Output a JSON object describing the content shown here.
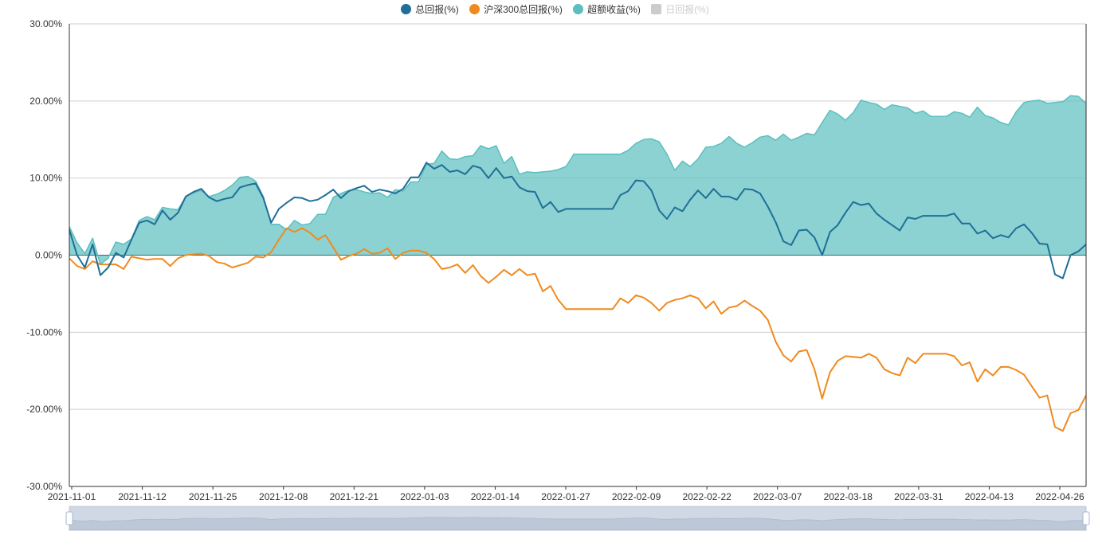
{
  "chart_data": {
    "type": "line",
    "ylim": [
      -30,
      30
    ],
    "y_ticks": [
      "30.00%",
      "20.00%",
      "10.00%",
      "0.00%",
      "-10.00%",
      "-20.00%",
      "-30.00%"
    ],
    "x_ticks": [
      "2021-11-01",
      "2021-11-12",
      "2021-11-25",
      "2021-12-08",
      "2021-12-21",
      "2022-01-03",
      "2022-01-14",
      "2022-01-27",
      "2022-02-09",
      "2022-02-22",
      "2022-03-07",
      "2022-03-18",
      "2022-03-31",
      "2022-04-13",
      "2022-04-26"
    ],
    "grid": true,
    "legend_position": "top-center",
    "series": [
      {
        "name": "总回报(%)",
        "color": "#1f6f98",
        "values": [
          3.3,
          0.0,
          -1.6,
          1.4,
          -2.6,
          -1.6,
          0.3,
          -0.3,
          2.0,
          4.2,
          4.5,
          4.0,
          5.8,
          4.6,
          5.5,
          7.6,
          8.2,
          8.6,
          7.5,
          7.0,
          7.3,
          7.5,
          8.8,
          9.1,
          9.3,
          7.4,
          4.2,
          6.0,
          6.8,
          7.5,
          7.4,
          7.0,
          7.2,
          7.8,
          8.5,
          7.4,
          8.3,
          8.7,
          9.0,
          8.2,
          8.5,
          8.3,
          8.0,
          8.6,
          10.1,
          10.1,
          12.0,
          11.2,
          11.7,
          10.8,
          11.0,
          10.5,
          11.6,
          11.3,
          10.0,
          11.3,
          10.0,
          10.2,
          8.8,
          8.3,
          8.2,
          6.1,
          6.9,
          5.6,
          6.0,
          6.0,
          6.0,
          6.0,
          6.0,
          6.0,
          6.0,
          7.8,
          8.3,
          9.7,
          9.6,
          8.4,
          5.8,
          4.7,
          6.2,
          5.7,
          7.2,
          8.4,
          7.4,
          8.6,
          7.6,
          7.6,
          7.2,
          8.6,
          8.5,
          8.0,
          6.3,
          4.3,
          1.8,
          1.3,
          3.2,
          3.3,
          2.3,
          0.0,
          3.0,
          3.9,
          5.5,
          6.9,
          6.5,
          6.7,
          5.4,
          4.6,
          3.9,
          3.2,
          4.9,
          4.7,
          5.1,
          5.1,
          5.1,
          5.1,
          5.4,
          4.1,
          4.1,
          2.8,
          3.2,
          2.2,
          2.6,
          2.3,
          3.5,
          4.0,
          2.9,
          1.5,
          1.4,
          -2.5,
          -3.0,
          0.0,
          0.5,
          1.4
        ]
      },
      {
        "name": "沪深300总回报(%)",
        "color": "#f08a1e",
        "values": [
          -0.4,
          -1.4,
          -1.8,
          -0.8,
          -1.2,
          -1.2,
          -1.2,
          -1.8,
          -0.2,
          -0.4,
          -0.6,
          -0.5,
          -0.5,
          -1.4,
          -0.4,
          0.0,
          0.1,
          0.2,
          -0.1,
          -0.9,
          -1.1,
          -1.6,
          -1.3,
          -1.0,
          -0.2,
          -0.3,
          0.4,
          2.0,
          3.5,
          3.0,
          3.5,
          2.9,
          2.0,
          2.6,
          1.0,
          -0.6,
          -0.1,
          0.2,
          0.8,
          0.2,
          0.3,
          0.9,
          -0.5,
          0.3,
          0.6,
          0.6,
          0.3,
          -0.5,
          -1.8,
          -1.6,
          -1.2,
          -2.3,
          -1.3,
          -2.7,
          -3.6,
          -2.8,
          -1.9,
          -2.6,
          -1.8,
          -2.6,
          -2.4,
          -4.7,
          -4.0,
          -5.8,
          -7.0,
          -7.0,
          -7.0,
          -7.0,
          -7.0,
          -7.0,
          -7.0,
          -5.6,
          -6.2,
          -5.2,
          -5.5,
          -6.2,
          -7.2,
          -6.2,
          -5.8,
          -5.6,
          -5.2,
          -5.6,
          -6.9,
          -6.0,
          -7.6,
          -6.8,
          -6.6,
          -5.9,
          -6.6,
          -7.2,
          -8.4,
          -11.2,
          -13.0,
          -13.8,
          -12.5,
          -12.3,
          -14.8,
          -18.6,
          -15.2,
          -13.7,
          -13.1,
          -13.2,
          -13.3,
          -12.8,
          -13.3,
          -14.8,
          -15.3,
          -15.6,
          -13.3,
          -14.0,
          -12.8,
          -12.8,
          -12.8,
          -12.8,
          -13.1,
          -14.3,
          -13.9,
          -16.4,
          -14.8,
          -15.6,
          -14.5,
          -14.5,
          -14.9,
          -15.5,
          -17.0,
          -18.5,
          -18.2,
          -22.3,
          -22.8,
          -20.5,
          -20.1,
          -18.2
        ]
      },
      {
        "name": "超额收益(%)",
        "color": "#5bbfbf",
        "values": [
          3.7,
          1.6,
          0.2,
          2.2,
          -1.2,
          -0.4,
          1.7,
          1.4,
          2.1,
          4.5,
          5.0,
          4.6,
          6.2,
          6.0,
          5.9,
          7.6,
          8.1,
          8.4,
          7.6,
          7.9,
          8.4,
          9.1,
          10.1,
          10.2,
          9.6,
          7.6,
          4.0,
          4.0,
          3.3,
          4.5,
          3.9,
          4.1,
          5.3,
          5.3,
          7.5,
          8.0,
          8.4,
          8.5,
          8.2,
          8.0,
          8.1,
          7.5,
          8.5,
          8.3,
          9.5,
          9.5,
          11.8,
          11.9,
          13.5,
          12.5,
          12.4,
          12.8,
          12.9,
          14.2,
          13.8,
          14.2,
          11.9,
          12.8,
          10.5,
          10.8,
          10.7,
          10.8,
          10.9,
          11.1,
          11.5,
          13.1,
          13.1,
          13.1,
          13.1,
          13.1,
          13.1,
          13.1,
          13.6,
          14.5,
          15.0,
          15.1,
          14.7,
          13.1,
          11.0,
          12.2,
          11.5,
          12.5,
          14.0,
          14.1,
          14.5,
          15.4,
          14.5,
          14.0,
          14.6,
          15.3,
          15.5,
          14.9,
          15.7,
          14.9,
          15.3,
          15.8,
          15.6,
          17.2,
          18.8,
          18.3,
          17.5,
          18.5,
          20.1,
          19.8,
          19.6,
          18.9,
          19.5,
          19.3,
          19.1,
          18.4,
          18.7,
          18.0,
          18.0,
          18.0,
          18.6,
          18.4,
          17.9,
          19.2,
          18.1,
          17.8,
          17.2,
          16.9,
          18.6,
          19.8,
          20.0,
          20.1,
          19.7,
          19.8,
          19.9,
          20.7,
          20.6,
          19.7
        ]
      },
      {
        "name": "日回报(%)",
        "color": "#cccccc",
        "hidden": true,
        "values": []
      }
    ]
  }
}
